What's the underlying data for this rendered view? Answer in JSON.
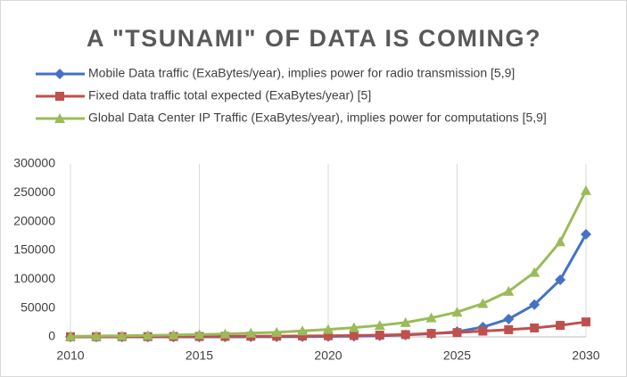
{
  "chart_data": {
    "type": "line",
    "title": "A \"TSUNAMI\" OF DATA IS COMING?",
    "x": [
      2010,
      2011,
      2012,
      2013,
      2014,
      2015,
      2016,
      2017,
      2018,
      2019,
      2020,
      2021,
      2022,
      2023,
      2024,
      2025,
      2026,
      2027,
      2028,
      2029,
      2030
    ],
    "series": [
      {
        "name": "Mobile Data traffic (ExaBytes/year), implies power for radio transmission [5,9]",
        "color": "#4472c4",
        "marker": "diamond",
        "values": [
          2,
          4,
          10,
          18,
          30,
          45,
          80,
          130,
          230,
          400,
          700,
          1200,
          2000,
          3500,
          5500,
          9000,
          17000,
          31000,
          56000,
          99000,
          178000
        ]
      },
      {
        "name": "Fixed data traffic total expected (ExaBytes/year) [5]",
        "color": "#c0504d",
        "marker": "square",
        "values": [
          200,
          300,
          400,
          500,
          600,
          700,
          900,
          1100,
          1300,
          1600,
          2000,
          2400,
          3000,
          4000,
          6000,
          7500,
          10000,
          12500,
          15500,
          20000,
          26000
        ]
      },
      {
        "name": "Global Data Center IP Traffic (ExaBytes/year), implies power for computations [5,9]",
        "color": "#9bbb59",
        "marker": "triangle",
        "values": [
          1000,
          1500,
          2000,
          2600,
          3300,
          4000,
          5000,
          6500,
          8000,
          10500,
          13000,
          16000,
          20000,
          25000,
          33000,
          43000,
          58000,
          79000,
          112000,
          165000,
          254000
        ]
      }
    ],
    "xlim": [
      2010,
      2030
    ],
    "xticks": [
      2010,
      2015,
      2020,
      2025,
      2030
    ],
    "ylim": [
      0,
      300000
    ],
    "yticks": [
      0,
      50000,
      100000,
      150000,
      200000,
      250000,
      300000
    ],
    "xgrid": true
  }
}
